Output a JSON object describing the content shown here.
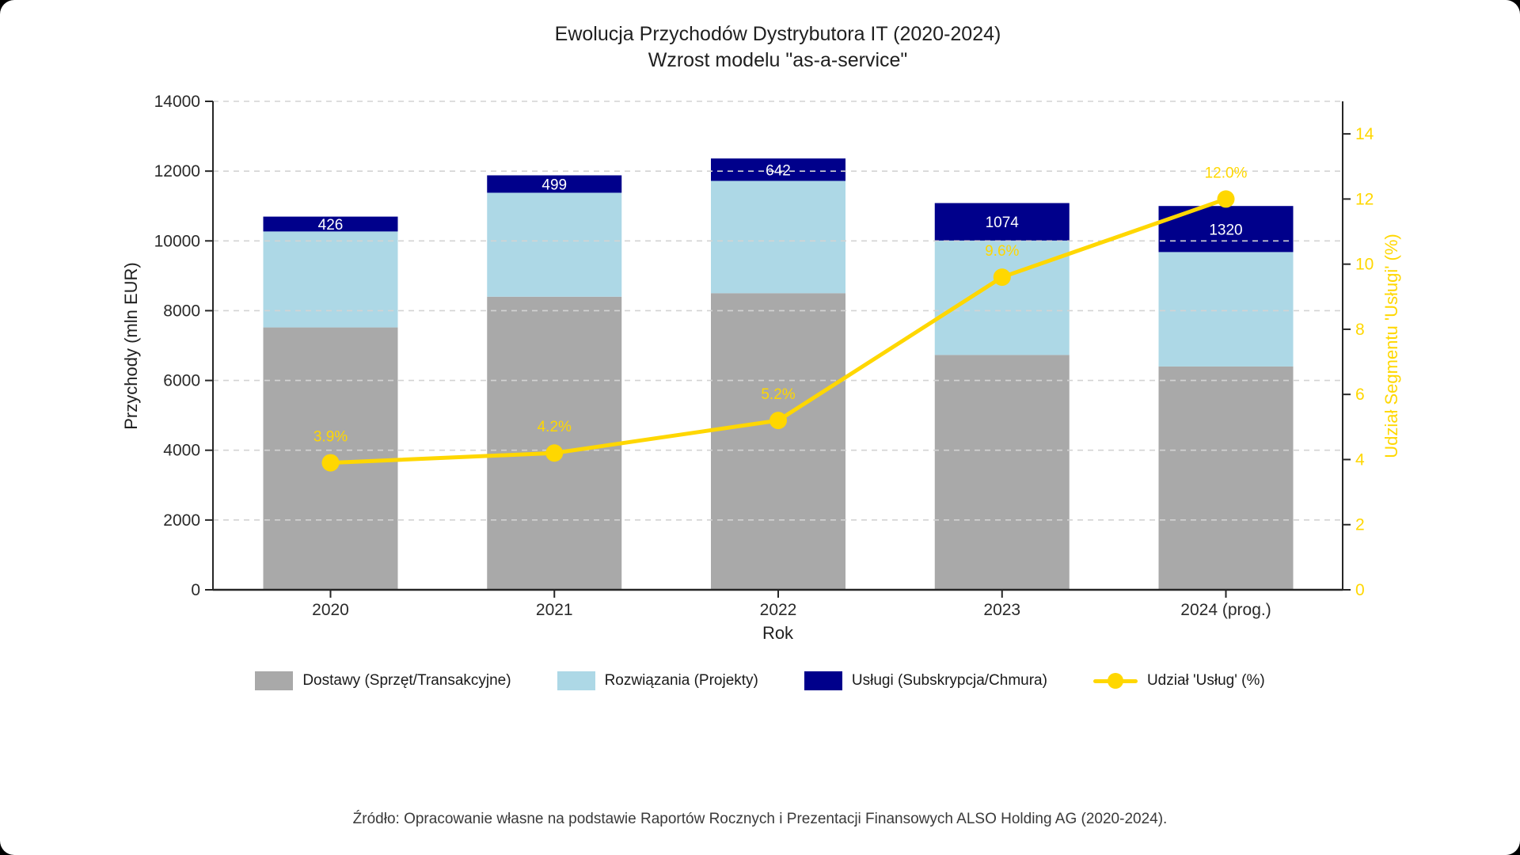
{
  "page": {
    "title": "Ewolucja Przychodów Dystrybutora IT (2020-2024)",
    "subtitle": "Wzrost modelu \"as-a-service\"",
    "source": "Źródło: Opracowanie własne na podstawie Raportów Rocznych i Prezentacji Finansowych ALSO Holding AG (2020-2024)."
  },
  "colors": {
    "dostawy": "#A9A9A9",
    "rozwiazania": "#ADD8E6",
    "uslugi": "#00008B",
    "line": "#FFD700",
    "grid": "#D3D3D3",
    "axis": "#262626",
    "tick_text": "#2a2a2a",
    "bar_label": "#FFFFFF"
  },
  "chart_data": {
    "type": "bar",
    "subtype": "stacked-bars-with-line",
    "categories": [
      "2020",
      "2021",
      "2022",
      "2023",
      "2024 (prog.)"
    ],
    "series": [
      {
        "name": "Dostawy (Sprzęt/Transakcyjne)",
        "type": "bar",
        "color_key": "dostawy",
        "values": [
          7520,
          8400,
          8500,
          6730,
          6400
        ]
      },
      {
        "name": "Rozwiązania (Projekty)",
        "type": "bar",
        "color_key": "rozwiazania",
        "values": [
          2750,
          2980,
          3220,
          3280,
          3280
        ]
      },
      {
        "name": "Usługi (Subskrypcja/Chmura)",
        "type": "bar",
        "color_key": "uslugi",
        "values": [
          426,
          499,
          642,
          1074,
          1320
        ],
        "labels": [
          "426",
          "499",
          "642",
          "1074",
          "1320"
        ]
      },
      {
        "name": "Udział 'Usług' (%)",
        "type": "line",
        "axis": "right",
        "color_key": "line",
        "values": [
          3.9,
          4.2,
          5.2,
          9.6,
          12.0
        ],
        "labels": [
          "3.9%",
          "4.2%",
          "5.2%",
          "9.6%",
          "12.0%"
        ]
      }
    ],
    "totals": [
      10696,
      11879,
      12362,
      11084,
      11000
    ],
    "title": "Ewolucja Przychodów Dystrybutora IT (2020-2024)",
    "subtitle": "Wzrost modelu \"as-a-service\"",
    "xlabel": "Rok",
    "left_axis": {
      "label": "Przychody (mln EUR)",
      "min": 0,
      "max": 14000,
      "ticks": [
        0,
        2000,
        4000,
        6000,
        8000,
        10000,
        12000,
        14000
      ]
    },
    "right_axis": {
      "label": "Udział Segmentu 'Usługi' (%)",
      "min": 0,
      "max": 15,
      "ticks": [
        0,
        2,
        4,
        6,
        8,
        10,
        12,
        14
      ]
    },
    "grid": "horizontal dashed, drawn over bars",
    "legend_position": "bottom center"
  }
}
